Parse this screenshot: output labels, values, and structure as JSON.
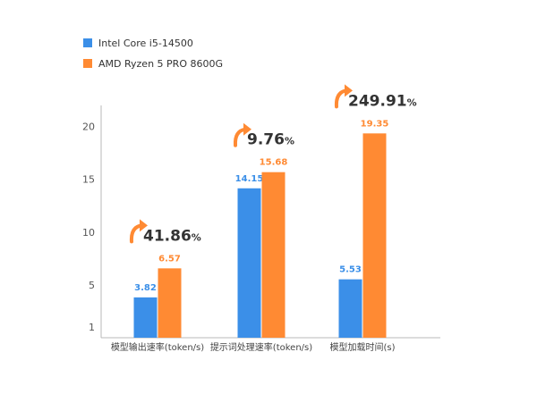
{
  "chart_data": {
    "type": "bar",
    "categories": [
      "模型输出速率(token/s)",
      "提示词处理速率(token/s)",
      "模型加载时间(s)"
    ],
    "series": [
      {
        "name": "Intel Core i5-14500",
        "values": [
          3.82,
          14.15,
          5.53
        ],
        "color": "#3b8fe8"
      },
      {
        "name": "AMD Ryzen 5 PRO 8600G",
        "values": [
          6.57,
          15.68,
          19.35
        ],
        "color": "#ff8a33"
      }
    ],
    "yticks": [
      1,
      5,
      10,
      15,
      20
    ],
    "ylim": [
      0,
      22
    ],
    "grid": false,
    "legend_position": "top-left",
    "annotations": [
      {
        "category": "模型输出速率(token/s)",
        "value": "41.86",
        "unit": "%"
      },
      {
        "category": "提示词处理速率(token/s)",
        "value": "9.76",
        "unit": "%"
      },
      {
        "category": "模型加载时间(s)",
        "value": "249.91",
        "unit": "%"
      }
    ],
    "colors": {
      "axis": "#b8b8b8",
      "tick_text": "#555555",
      "annotation_text": "#333333",
      "arrow": "#ff8a33"
    },
    "icons": {
      "annotation_arrow": "curved-up-arrow-icon"
    }
  }
}
